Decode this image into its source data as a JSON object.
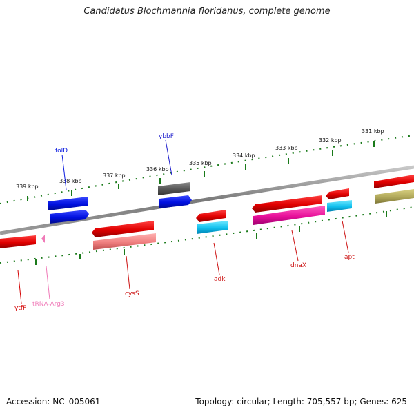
{
  "title": "Candidatus Blochmannia floridanus, complete genome",
  "footer": {
    "accession": "Accession: NC_005061",
    "summary": "Topology: circular; Length: 705,557 bp; Genes: 625"
  },
  "scale": {
    "kbp_labels": [
      "339 kbp",
      "338 kbp",
      "337 kbp",
      "336 kbp",
      "335 kbp",
      "334 kbp",
      "333 kbp",
      "332 kbp",
      "331 kbp"
    ]
  },
  "genes": [
    {
      "name": "folD",
      "strand": "forward",
      "color": "#0a1ae0"
    },
    {
      "name": "ybbF",
      "strand": "forward",
      "color": "#1d1dcc"
    },
    {
      "name": "ytfF",
      "strand": "reverse",
      "color": "#d40000"
    },
    {
      "name": "tRNA-Arg3",
      "strand": "reverse",
      "color": "#f07ab8"
    },
    {
      "name": "cysS",
      "strand": "reverse",
      "color": "#cc1010"
    },
    {
      "name": "adk",
      "strand": "reverse",
      "color": "#cc1010"
    },
    {
      "name": "dnaX",
      "strand": "reverse",
      "color": "#cc1010"
    },
    {
      "name": "apt",
      "strand": "reverse",
      "color": "#cc1010"
    }
  ]
}
